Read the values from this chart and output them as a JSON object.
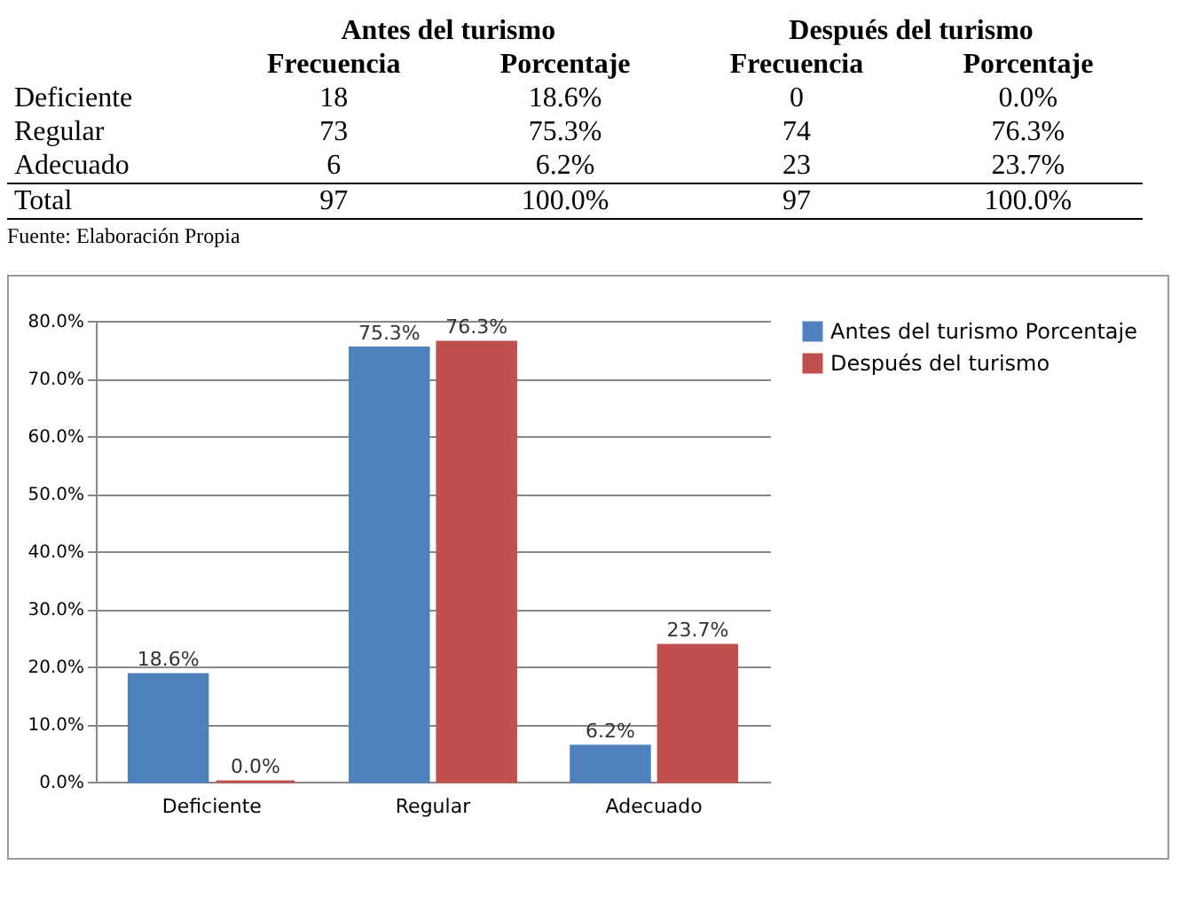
{
  "chart_data": [
    {
      "type": "other",
      "annotations": [
        "Antes del turismo",
        "Después del turismo",
        "Frecuencia",
        "Porcentaje",
        "Frecuencia",
        "Porcentaje",
        "Deficiente",
        "18",
        "18.6%",
        "0",
        "0.0%",
        "Regular",
        "73",
        "75.3%",
        "74",
        "76.3%",
        "Adecuado",
        "6",
        "6.2%",
        "23",
        "23.7%",
        "Total",
        "97",
        "100.0%",
        "97",
        "100.0%",
        "Fuente: Elaboración Propia"
      ]
    },
    {
      "type": "bar",
      "categories": [
        "Deficiente",
        "Regular",
        "Adecuado"
      ],
      "series": [
        {
          "name": "Antes del turismo Porcentaje",
          "color": "#4f81bd",
          "values": [
            18.6,
            75.3,
            6.2
          ],
          "value_labels": [
            "18.6%",
            "75.3%",
            "6.2%"
          ]
        },
        {
          "name": "Después del turismo",
          "color": "#c0504d",
          "values": [
            0,
            76.3,
            23.7
          ],
          "value_labels": [
            "0.0%",
            "76.3%",
            "23.7%"
          ]
        }
      ],
      "ylim": [
        0,
        80
      ],
      "yticks": [
        {
          "value": 0,
          "label": "0.0%"
        },
        {
          "value": 10,
          "label": "10.0%"
        },
        {
          "value": 20,
          "label": "20.0%"
        },
        {
          "value": 30,
          "label": "30.0%"
        },
        {
          "value": 40,
          "label": "40.0%"
        },
        {
          "value": 50,
          "label": "50.0%"
        },
        {
          "value": 60,
          "label": "60.0%"
        },
        {
          "value": 70,
          "label": "70.0%"
        },
        {
          "value": 80,
          "label": "80.0%"
        }
      ],
      "grid": "y",
      "legend": "right"
    }
  ]
}
